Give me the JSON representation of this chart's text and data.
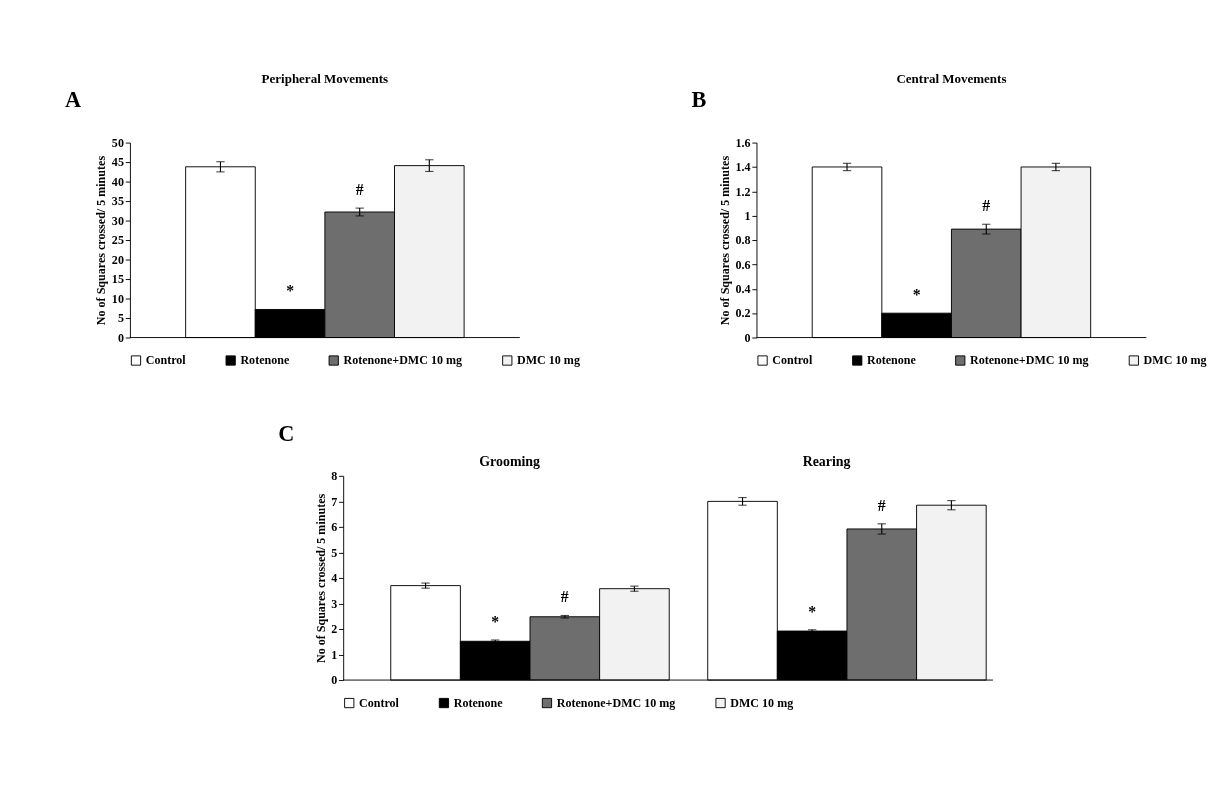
{
  "chart_data": [
    {
      "type": "bar",
      "title": "Peripheral Movements",
      "ylabel": "No of Squares crossed/ 5 minutes",
      "categories": [
        null
      ],
      "ylim": [
        0,
        50
      ],
      "yticks": [
        0,
        5,
        10,
        15,
        20,
        25,
        30,
        35,
        40,
        45,
        50
      ],
      "legend": "bottom",
      "tick_labels": "y",
      "grid": false,
      "series": [
        {
          "name": "Control",
          "color": "#ffffff",
          "values": [
            43.8
          ],
          "errors": [
            1.3
          ]
        },
        {
          "name": "Rotenone",
          "color": "#000000",
          "values": [
            7.2
          ],
          "errors": [
            null
          ]
        },
        {
          "name": "Rotenone+DMC 10 mg",
          "color": "#6e6e6e",
          "values": [
            32.2
          ],
          "errors": [
            1
          ]
        },
        {
          "name": "DMC 10 mg",
          "color": "#f2f2f2",
          "values": [
            44.1
          ],
          "errors": [
            1.5
          ]
        }
      ],
      "annotations": [
        "A",
        "*",
        "#"
      ]
    },
    {
      "type": "bar",
      "title": "Central Movements",
      "ylabel": "No of Squares crossed/ 5 minutes",
      "categories": [
        null
      ],
      "ylim": [
        0,
        1.6
      ],
      "yticks": [
        0,
        0.2,
        0.4,
        0.6,
        0.8,
        1,
        1.2,
        1.4,
        1.6
      ],
      "legend": "bottom",
      "tick_labels": "y",
      "grid": false,
      "series": [
        {
          "name": "Control",
          "color": "#ffffff",
          "values": [
            1.4
          ],
          "errors": [
            0.03
          ]
        },
        {
          "name": "Rotenone",
          "color": "#000000",
          "values": [
            0.2
          ],
          "errors": [
            null
          ]
        },
        {
          "name": "Rotenone+DMC 10 mg",
          "color": "#6e6e6e",
          "values": [
            0.89
          ],
          "errors": [
            0.04
          ]
        },
        {
          "name": "DMC 10 mg",
          "color": "#f2f2f2",
          "values": [
            1.4
          ],
          "errors": [
            0.03
          ]
        }
      ],
      "annotations": [
        "B",
        "*",
        "#"
      ]
    },
    {
      "type": "bar",
      "ylabel": "No of Squares crossed/ 5 minutes",
      "categories": [
        "Grooming",
        "Rearing"
      ],
      "ylim": [
        0,
        8
      ],
      "yticks": [
        0,
        1,
        2,
        3,
        4,
        5,
        6,
        7,
        8
      ],
      "legend": "bottom",
      "grid": false,
      "series": [
        {
          "name": "Control",
          "color": "#ffffff",
          "values": [
            3.7,
            7.0
          ],
          "errors": [
            0.1,
            0.15
          ]
        },
        {
          "name": "Rotenone",
          "color": "#000000",
          "values": [
            1.52,
            1.92
          ],
          "errors": [
            0.05,
            0.05
          ]
        },
        {
          "name": "Rotenone+DMC 10 mg",
          "color": "#6e6e6e",
          "values": [
            2.48,
            5.92
          ],
          "errors": [
            0.05,
            0.2
          ]
        },
        {
          "name": "DMC 10 mg",
          "color": "#f2f2f2",
          "values": [
            3.58,
            6.85
          ],
          "errors": [
            0.1,
            0.18
          ]
        }
      ],
      "annotations": [
        "C",
        "*",
        "#",
        "*",
        "#"
      ]
    }
  ]
}
